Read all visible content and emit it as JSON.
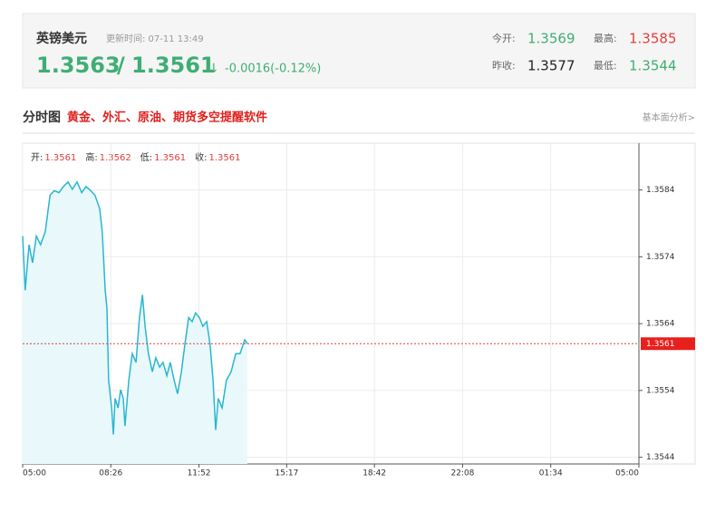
{
  "header": {
    "name": "英镑美元",
    "update_time": "更新时间: 07-11 13:49",
    "bid": 1.3563,
    "separator": "/",
    "ask": 1.3561,
    "arrow": "↓",
    "change": "-0.0016(-0.12%)",
    "stats": [
      {
        "label": "今开:",
        "value": 1.3569
      },
      {
        "label": "最高:",
        "value": 1.3585
      },
      {
        "label": "昨收:",
        "value": 1.3577
      },
      {
        "label": "最低:",
        "value": 1.3544
      }
    ]
  },
  "section": {
    "title": "分时图",
    "promo": "黄金、外汇、原油、期货多空提醒软件",
    "link": "基本面分析>"
  },
  "chart_data": {
    "type": "line",
    "color": "#29b6cf",
    "fill": "#e8f8fb",
    "grid": true,
    "info": [
      {
        "label": "开:",
        "value": 1.3561
      },
      {
        "label": "高:",
        "value": 1.3562
      },
      {
        "label": "低:",
        "value": 1.3561
      },
      {
        "label": "收:",
        "value": 1.3561
      }
    ],
    "current_price": 1.3561,
    "x": [
      300,
      306,
      315,
      323,
      332,
      342,
      353,
      364,
      374,
      385,
      395,
      406,
      416,
      427,
      438,
      448,
      459,
      469,
      480,
      486,
      493,
      497,
      501,
      508,
      512,
      516,
      523,
      529,
      535,
      539,
      548,
      556,
      565,
      573,
      580,
      586,
      594,
      603,
      611,
      620,
      628,
      637,
      645,
      654,
      662,
      671,
      679,
      688,
      696,
      704,
      713,
      721,
      730,
      738,
      745,
      751,
      757,
      766,
      776,
      787,
      798,
      808,
      819,
      825
    ],
    "values": [
      1.35771,
      1.3569,
      1.35758,
      1.35731,
      1.35771,
      1.35758,
      1.35778,
      1.35832,
      1.35839,
      1.35836,
      1.35845,
      1.35852,
      1.35841,
      1.35852,
      1.35836,
      1.35845,
      1.35839,
      1.35832,
      1.35812,
      1.35778,
      1.3569,
      1.35663,
      1.35555,
      1.35514,
      1.35474,
      1.35528,
      1.35514,
      1.35541,
      1.35528,
      1.35487,
      1.35555,
      1.35595,
      1.35582,
      1.35649,
      1.35683,
      1.35636,
      1.35595,
      1.35568,
      1.35589,
      1.35575,
      1.35582,
      1.35562,
      1.35582,
      1.35555,
      1.35535,
      1.35568,
      1.35609,
      1.35649,
      1.35643,
      1.35656,
      1.35649,
      1.35636,
      1.35643,
      1.35609,
      1.35555,
      1.35481,
      1.35528,
      1.35514,
      1.35555,
      1.35568,
      1.35595,
      1.35595,
      1.35616,
      1.3561
    ],
    "xlim": [
      300,
      1740
    ],
    "xticks": [
      {
        "value": 300,
        "label": "05:00"
      },
      {
        "value": 506,
        "label": "08:26"
      },
      {
        "value": 712,
        "label": "11:52"
      },
      {
        "value": 917,
        "label": "15:17"
      },
      {
        "value": 1122,
        "label": "18:42"
      },
      {
        "value": 1328,
        "label": "22:08"
      },
      {
        "value": 1534,
        "label": "01:34"
      },
      {
        "value": 1740,
        "label": "05:00"
      }
    ],
    "ylim": [
      1.3543,
      1.3591
    ],
    "yticks": [
      1.3544,
      1.3554,
      1.3564,
      1.3574,
      1.3584
    ]
  }
}
